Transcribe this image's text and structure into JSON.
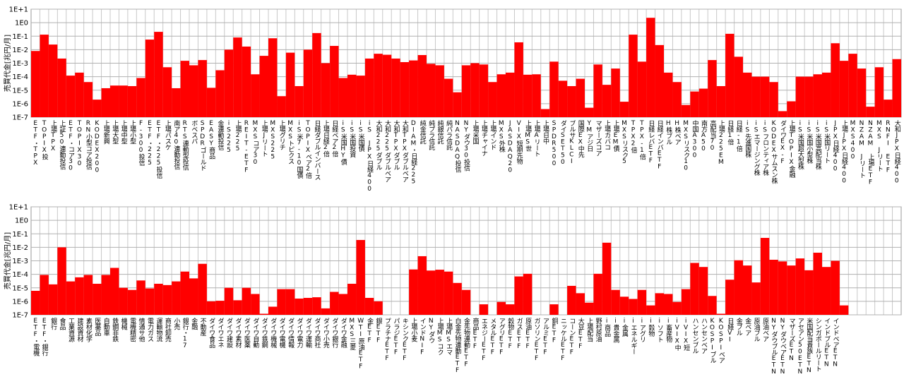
{
  "chart_data": [
    {
      "type": "bar",
      "y_label": "売買代金[兆円/月]",
      "color": "#ff0000",
      "log_scale": true,
      "grid": true,
      "ylim": [
        1e-07,
        10
      ],
      "yticks": [
        {
          "value": 10,
          "label": "1E+1"
        },
        {
          "value": 1,
          "label": "1E0"
        },
        {
          "value": 0.1,
          "label": "1E-1"
        },
        {
          "value": 0.01,
          "label": "1E-2"
        },
        {
          "value": 0.001,
          "label": "1E-3"
        },
        {
          "value": 0.0001,
          "label": "1E-4"
        },
        {
          "value": 1e-05,
          "label": "1E-5"
        },
        {
          "value": 1e-06,
          "label": "1E-6"
        },
        {
          "value": 1e-07,
          "label": "1E-7"
        }
      ],
      "categories": [
        "ETF・TPX",
        "TOPIX投",
        "上場TPX",
        "上証50連動投信",
        "ETF・コア30",
        "TOPIX30",
        "RN小型コア投信",
        "KODEX200",
        "上場新興",
        "上場大型",
        "上場中型",
        "上場小型",
        "F-300投信",
        "ETF・225",
        "ETF・225投信",
        "上場バスケ",
        "南ア40連動投信",
        "RTS連動型投信",
        "ボベスパ",
        "SPDRゴールド",
        "EASY商品",
        "金連動投信",
        "iS225",
        "上場225",
        "REIT-ETF",
        "MXSコア30",
        "上場Jリート",
        "MXS225",
        "上場グリチ",
        "MXSトピクス",
        "iS米7-10国債",
        "TOPIXベア2倍",
        "日経ダブルインバース",
        "上場日経2倍",
        "日経ベア2倍",
        "iS米国HY債",
        "iS米国投資",
        "iS米国債",
        "iS JPX日経400",
        "大和225ダブル",
        "大和225ダブルベア",
        "大和TPXダブル",
        "大和TPXダブルベア",
        "DIAM・日経225",
        "純金信託",
        "純プラ信託",
        "純銀信託",
        "純パラ信託",
        "NASDAQ投信",
        "NYダウ30投信",
        "上場米国",
        "上場チャイナ",
        "上場インド",
        "MXS外株",
        "JASDAQ20",
        "VIX短期先物",
        "上場MS世",
        "上場Aリート",
        "上場日中",
        "SPDR500",
        "ダイSET50",
        "ブルサKLCI",
        "国際EX中先",
        "YMアジ日",
        "マザーズコア",
        "上場カバコ",
        "上場EM債",
        "MXSリスク5",
        "TPX2倍",
        "TPX-1倍",
        "日経レバETF",
        "日経インバETF",
        "H株ブル",
        "H株ベア",
        "MXSリスク10",
        "中国A300",
        "南方A50",
        "高配当70",
        "上場225EM",
        "日経1倍",
        "日経-1倍",
        "iS先進国株",
        "iSエマージング株",
        "iSフロンティア株",
        "KODEXサムスン株",
        "ダイワEX-F",
        "上場TOPIX金融",
        "iS米国超大型株",
        "iS米国小型株",
        "iS米国高配当株",
        "iS米国リート",
        "JPX日経400",
        "上場JPX日経400",
        "MXS400",
        "NZAM Jリート",
        "NZAM 上場ETF",
        "MXS Jリート",
        "RNFI ETF",
        "大和JPX日経400"
      ],
      "values": [
        0.008,
        0.13,
        0.024,
        0.0022,
        0.00012,
        0.0002,
        4e-05,
        2e-06,
        1.4e-05,
        2.2e-05,
        2.2e-05,
        2e-05,
        8e-05,
        0.056,
        0.21,
        0.0005,
        1.4e-05,
        0.0015,
        0.0007,
        0.0017,
        1.5e-05,
        0.0003,
        0.01,
        0.08,
        0.017,
        0.00015,
        0.0035,
        0.07,
        3.6e-06,
        0.006,
        2e-05,
        0.01,
        0.17,
        0.001,
        0.019,
        8e-05,
        0.00014,
        0.00012,
        0.0022,
        0.005,
        0.0042,
        0.0022,
        0.0012,
        0.0016,
        0.004,
        0.0009,
        0.0007,
        7e-05,
        7e-06,
        0.0007,
        0.001,
        0.0008,
        4e-05,
        0.00015,
        0.0002,
        0.035,
        0.00014,
        0.00015,
        4e-07,
        0.0013,
        5e-05,
        2e-05,
        7e-05,
        5e-07,
        0.0008,
        2.5e-05,
        0.0004,
        1.4e-06,
        0.13,
        0.0013,
        2.3,
        0.022,
        0.0002,
        4e-05,
        8e-07,
        8e-06,
        1.3e-05,
        0.0017,
        2e-05,
        0.15,
        0.003,
        0.0002,
        0.0001,
        0.0001,
        4e-05,
        2.8e-07,
        1.5e-06,
        0.0001,
        0.0001,
        0.00015,
        0.0002,
        0.03,
        0.0015,
        0.005,
        0.0004,
        6e-07,
        0.0005,
        2e-06,
        0.002
      ]
    },
    {
      "type": "bar",
      "y_label": "売買代金[兆円/月]",
      "color": "#ff0000",
      "log_scale": true,
      "grid": true,
      "ylim": [
        1e-07,
        10
      ],
      "yticks": [
        {
          "value": 10,
          "label": "1E+1"
        },
        {
          "value": 1,
          "label": "1E0"
        },
        {
          "value": 0.1,
          "label": "1E-1"
        },
        {
          "value": 0.01,
          "label": "1E-2"
        },
        {
          "value": 0.001,
          "label": "1E-3"
        },
        {
          "value": 0.0001,
          "label": "1E-4"
        },
        {
          "value": 1e-05,
          "label": "1E-5"
        },
        {
          "value": 1e-06,
          "label": "1E-6"
        },
        {
          "value": 1e-07,
          "label": "1E-7"
        }
      ],
      "categories": [
        "ETF・電機",
        "ETF・銀行",
        "銀行",
        "食品",
        "工業資源",
        "建設資材",
        "素材化学",
        "医薬品",
        "自動車",
        "鉄鋼非鉄",
        "機械",
        "電機精密",
        "情通サ他",
        "電力ガス",
        "運輸物流",
        "商社卸売",
        "小売",
        "銀行・17",
        "金融",
        "不動産",
        "ダイワ食品",
        "ダイワエネ",
        "ダイワ建設",
        "ダイワ素材",
        "ダイワ医薬",
        "ダイワ自動",
        "ダイワ鉄鋼",
        "ダイワ機械",
        "ダイワ電機",
        "ダイワ情報",
        "ダイワ電力",
        "ダイワ運輸",
        "ダイワ商社",
        "ダイワ小売",
        "ダイワ銀行",
        "ダイワ金融",
        "MXS三菱",
        "WTI原油ETF",
        "金ETF",
        "銀ETF",
        "プラチナETF",
        "パラジETF",
        "キシンクETF",
        "上場小麦",
        "インドNIF",
        "NYダウ",
        "上場MSコク",
        "上場MSエマ",
        "白金先物連動ETF",
        "金先物連動ETF",
        "商品ETF",
        "エネジーETF",
        "メタルETF",
        "アグリETF",
        "穀物ETF",
        "ガスETF",
        "原油ETF",
        "ガソリンETF",
        "アルミETF",
        "銅ETF",
        "ニッケルETF",
        "コーンETF",
        "大豆ETF",
        "上場配当",
        "野村原油",
        "i商品",
        "i貴金属",
        "i金属",
        "iエネルギー",
        "iアグリ",
        "i穀物",
        "iソフト",
        "i畜産物",
        "iVIX中",
        "iVIX短",
        "ハンセンブル",
        "ハンセンベア",
        "KOSPIブル",
        "KOSPIベア",
        "日経VI",
        "金ブル",
        "金ベア",
        "原油ブル",
        "原油ベア",
        "NYダウブルETN",
        "NYダウベアETN",
        "マザーズETN",
        "アセアン50ETN",
        "米国配当貴族ETN",
        "シンガポールリート",
        "インドブルETN",
        "インドベアETN",
        null,
        null,
        null,
        null,
        null,
        null,
        null
      ],
      "values": [
        6e-06,
        9e-05,
        1.8e-05,
        0.01,
        3e-05,
        6e-05,
        9e-05,
        2e-05,
        9e-05,
        0.0003,
        1e-05,
        7e-06,
        3.5e-05,
        9e-06,
        2e-05,
        1.6e-05,
        3e-05,
        0.00016,
        5e-05,
        0.0006,
        1e-06,
        1.1e-06,
        1e-05,
        1.2e-06,
        1e-05,
        3.5e-06,
        1.2e-07,
        4e-07,
        8e-06,
        8e-06,
        1.6e-06,
        1.8e-06,
        2e-06,
        3e-07,
        5e-06,
        3.5e-06,
        2e-05,
        0.035,
        1.8e-06,
        1e-06,
        null,
        null,
        null,
        0.00023,
        0.0022,
        0.00019,
        0.00022,
        0.00016,
        2.3e-05,
        7e-06,
        null,
        6e-07,
        null,
        9e-07,
        6e-07,
        7e-05,
        0.00011,
        null,
        null,
        6e-07,
        null,
        1.4e-05,
        4e-06,
        8e-07,
        0.00011,
        0.022,
        7e-06,
        2.2e-06,
        1.5e-06,
        7e-06,
        5e-07,
        4e-06,
        3.5e-06,
        9e-07,
        8e-06,
        0.0007,
        0.00035,
        2.5e-06,
        1.2e-07,
        4e-05,
        0.0011,
        0.00045,
        2.5e-05,
        0.05,
        0.0012,
        0.0009,
        0.00045,
        0.0015,
        0.0002,
        0.004,
        0.00035,
        0.001,
        5e-07,
        null,
        null,
        null,
        null,
        null,
        null
      ]
    }
  ]
}
